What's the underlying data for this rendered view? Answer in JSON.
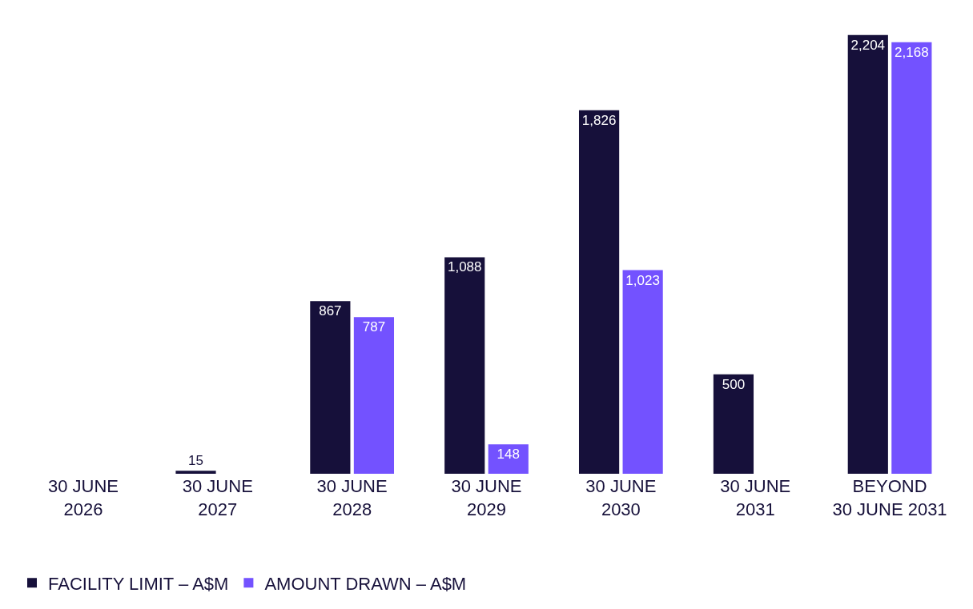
{
  "chart_data": {
    "type": "bar",
    "categories": [
      "30 JUNE\n2026",
      "30 JUNE\n2027",
      "30 JUNE\n2028",
      "30 JUNE\n2029",
      "30 JUNE\n2030",
      "30 JUNE\n2031",
      "BEYOND\n30 JUNE 2031"
    ],
    "series": [
      {
        "name": "FACILITY LIMIT – A$M",
        "color": "#16103a",
        "values": [
          null,
          15,
          867,
          1088,
          1826,
          500,
          2204
        ],
        "value_labels": [
          null,
          "15",
          "867",
          "1,088",
          "1,826",
          "500",
          "2,204"
        ]
      },
      {
        "name": "AMOUNT DRAWN – A$M",
        "color": "#7352ff",
        "values": [
          null,
          null,
          787,
          148,
          1023,
          null,
          2168
        ],
        "value_labels": [
          null,
          null,
          "787",
          "148",
          "1,023",
          null,
          "2,168"
        ]
      }
    ],
    "legend": "bottom left"
  }
}
